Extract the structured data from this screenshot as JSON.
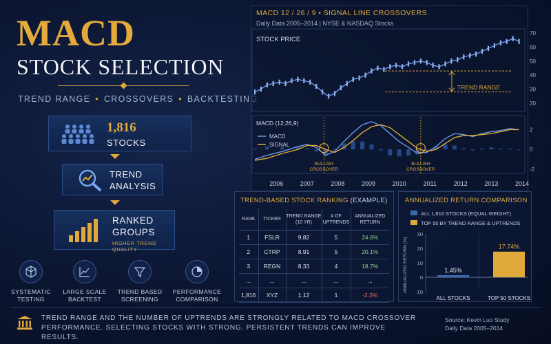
{
  "header": {
    "title": "MACD",
    "subtitle": "STOCK SELECTION",
    "tagline": [
      "TREND RANGE",
      "CROSSOVERS",
      "BACKTESTING"
    ]
  },
  "flow": {
    "stocks": {
      "count": "1,816",
      "label": "STOCKS"
    },
    "trend": {
      "line1": "TREND",
      "line2": "ANALYSIS"
    },
    "ranked": {
      "line1": "RANKED",
      "line2": "GROUPS",
      "note": "HIGHER TREND QUALITY"
    }
  },
  "features": [
    {
      "line1": "SYSTEMATIC",
      "line2": "TESTING",
      "icon": "cube-icon"
    },
    {
      "line1": "LARGE SCALE",
      "line2": "BACKTEST",
      "icon": "line-chart-icon"
    },
    {
      "line1": "TREND BASED",
      "line2": "SCREENING",
      "icon": "funnel-icon"
    },
    {
      "line1": "PERFORMANCE",
      "line2": "COMPARISON",
      "icon": "pie-chart-icon"
    }
  ],
  "chart_header": {
    "title": "MACD 12 / 26 / 9  •  SIGNAL LINE CROSSOVERS",
    "subtitle": "Daily Data 2005–2014  |  NYSE & NASDAQ Stocks"
  },
  "chart_data": [
    {
      "type": "line",
      "title": "STOCK PRICE",
      "ylim": [
        20,
        70
      ],
      "yticks": [
        20,
        30,
        40,
        50,
        60,
        70
      ],
      "annotation": "TREND RANGE",
      "x": [
        2005.6,
        2005.8,
        2006.0,
        2006.2,
        2006.4,
        2006.6,
        2006.8,
        2007.0,
        2007.2,
        2007.4,
        2007.6,
        2007.8,
        2008.0,
        2008.2,
        2008.4,
        2008.6,
        2008.8,
        2009.0,
        2009.2,
        2009.4,
        2009.6,
        2009.8,
        2010.0,
        2010.2,
        2010.4,
        2010.6,
        2010.8,
        2011.0,
        2011.2,
        2011.4,
        2011.6,
        2011.8,
        2012.0,
        2012.2,
        2012.4,
        2012.6,
        2012.8,
        2013.0,
        2013.2,
        2013.4,
        2013.6,
        2013.8,
        2014.0,
        2014.2
      ],
      "values": [
        28,
        30,
        33,
        34,
        35,
        34,
        36,
        37,
        36,
        35,
        32,
        28,
        25,
        27,
        31,
        34,
        37,
        38,
        40,
        43,
        45,
        44,
        46,
        47,
        46,
        48,
        49,
        50,
        49,
        47,
        46,
        48,
        50,
        51,
        53,
        54,
        55,
        57,
        59,
        61,
        63,
        64,
        66,
        64
      ]
    },
    {
      "type": "line",
      "title": "MACD (12,26,9)",
      "legend": [
        "MACD",
        "SIGNAL"
      ],
      "ylim": [
        -2,
        3
      ],
      "yticks": [
        -2,
        0,
        2
      ],
      "xticks": [
        "2006",
        "2007",
        "2008",
        "2009",
        "2010",
        "2011",
        "2012",
        "2013",
        "2014"
      ],
      "series": [
        {
          "name": "MACD",
          "x": [
            2005.6,
            2006.0,
            2006.5,
            2007.0,
            2007.3,
            2007.6,
            2007.9,
            2008.2,
            2008.5,
            2008.8,
            2009.1,
            2009.4,
            2009.7,
            2010.0,
            2010.3,
            2010.6,
            2010.9,
            2011.2,
            2011.5,
            2011.8,
            2012.1,
            2012.4,
            2012.7,
            2013.0,
            2013.3,
            2013.6,
            2013.9,
            2014.2
          ],
          "values": [
            -1.0,
            -0.6,
            -0.2,
            0.3,
            0.5,
            0.2,
            -0.6,
            -0.2,
            0.8,
            1.7,
            2.5,
            2.8,
            2.4,
            1.6,
            0.8,
            0.2,
            -0.4,
            -0.3,
            0.3,
            1.1,
            1.6,
            1.5,
            1.3,
            1.6,
            1.8,
            1.9,
            2.1,
            2.0
          ]
        },
        {
          "name": "SIGNAL",
          "x": [
            2005.6,
            2006.0,
            2006.5,
            2007.0,
            2007.3,
            2007.6,
            2007.9,
            2008.2,
            2008.5,
            2008.8,
            2009.1,
            2009.4,
            2009.7,
            2010.0,
            2010.3,
            2010.6,
            2010.9,
            2011.2,
            2011.5,
            2011.8,
            2012.1,
            2012.4,
            2012.7,
            2013.0,
            2013.3,
            2013.6,
            2013.9,
            2014.2
          ],
          "values": [
            -1.1,
            -0.9,
            -0.4,
            0.0,
            0.4,
            0.4,
            0.0,
            -0.3,
            0.2,
            0.9,
            1.7,
            2.3,
            2.5,
            2.2,
            1.5,
            0.8,
            0.1,
            -0.2,
            0.0,
            0.6,
            1.2,
            1.4,
            1.4,
            1.5,
            1.6,
            1.8,
            2.0,
            2.0
          ]
        }
      ],
      "annotations": [
        {
          "line1": "BULLISH",
          "line2": "CROSSOVER",
          "x": 2007.85
        },
        {
          "line1": "BULLISH",
          "line2": "CROSSOVER",
          "x": 2011.0
        }
      ]
    },
    {
      "type": "bar",
      "title": "ANNUALIZED RETURN COMPARISON",
      "categories": [
        "ALL STOCKS",
        "TOP 50 STOCKS"
      ],
      "values": [
        1.45,
        17.74
      ],
      "value_labels": [
        "1.45%",
        "17.74%"
      ],
      "series_legend": [
        "ALL 1,816 STOCKS (EQUAL WEIGHT)",
        "TOP 50 BY TREND RANGE & UPTRENDS"
      ],
      "ylabel": "ANNUALIZED RETURN (%)",
      "ylim": [
        -10,
        30
      ],
      "yticks": [
        30,
        20,
        10,
        0,
        -10
      ],
      "colors": [
        "#3f67b0",
        "#e0a93b"
      ]
    }
  ],
  "ranking": {
    "title_main": "TREND-BASED STOCK RANKING",
    "title_note": " (EXAMPLE)",
    "columns": [
      {
        "l1": "RANK",
        "l2": ""
      },
      {
        "l1": "TICKER",
        "l2": ""
      },
      {
        "l1": "TREND RANGE",
        "l2": "(10 YR)"
      },
      {
        "l1": "# OF",
        "l2": "UPTRENDS"
      },
      {
        "l1": "ANNUALIZED",
        "l2": "RETURN"
      }
    ],
    "rows": [
      [
        "1",
        "FSLR",
        "9.82",
        "5",
        "24.6%"
      ],
      [
        "2",
        "CTRP",
        "8.91",
        "5",
        "20.1%"
      ],
      [
        "3",
        "REGN",
        "8.33",
        "4",
        "18.7%"
      ],
      [
        "...",
        "...",
        "...",
        "...",
        "..."
      ],
      [
        "1,816",
        "XYZ",
        "1.12",
        "1",
        "-2.3%"
      ]
    ]
  },
  "footer": {
    "text": "TREND RANGE AND THE NUMBER OF UPTRENDS ARE STRONGLY RELATED TO MACD CROSSOVER PERFORMANCE. SELECTING STOCKS WITH STRONG, PERSISTENT TRENDS CAN IMPROVE RESULTS.",
    "source_line1": "Source: Kevin Luo Study",
    "source_line2": "Daily Data 2005–2014"
  },
  "colors": {
    "gold": "#e0a93b",
    "navy": "#0b1530",
    "blue": "#3f67b0",
    "green": "#8fd48a",
    "red": "#ff5a52"
  }
}
